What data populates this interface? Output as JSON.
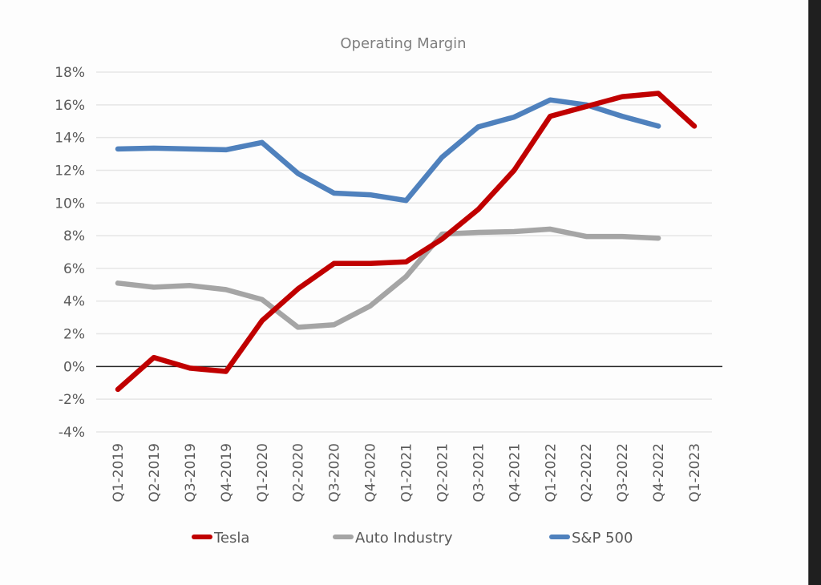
{
  "chart_data": {
    "type": "line",
    "title": "Operating Margin",
    "xlabel": "",
    "ylabel": "",
    "ylim": [
      -4,
      18
    ],
    "y_tick_step": 2,
    "y_tick_labels": [
      "18%",
      "16%",
      "14%",
      "12%",
      "10%",
      "8%",
      "6%",
      "4%",
      "2%",
      "0%",
      "-2%",
      "-4%"
    ],
    "y_unit": "%",
    "grid": true,
    "legend_position": "bottom",
    "categories": [
      "Q1-2019",
      "Q2-2019",
      "Q3-2019",
      "Q4-2019",
      "Q1-2020",
      "Q2-2020",
      "Q3-2020",
      "Q4-2020",
      "Q1-2021",
      "Q2-2021",
      "Q3-2021",
      "Q4-2021",
      "Q1-2022",
      "Q2-2022",
      "Q3-2022",
      "Q4-2022",
      "Q1-2023"
    ],
    "series": [
      {
        "name": "Tesla",
        "color": "#c00000",
        "values": [
          -1.4,
          0.55,
          -0.1,
          -0.3,
          2.8,
          4.75,
          6.3,
          6.3,
          6.4,
          7.8,
          9.6,
          12.0,
          15.3,
          15.9,
          16.5,
          16.7,
          14.7
        ]
      },
      {
        "name": "Auto Industry",
        "color": "#a5a5a5",
        "values": [
          5.1,
          4.85,
          4.95,
          4.7,
          4.1,
          2.4,
          2.55,
          3.7,
          5.5,
          8.1,
          8.2,
          8.25,
          8.4,
          7.95,
          7.95,
          7.85,
          null
        ]
      },
      {
        "name": "S&P 500",
        "color": "#4f81bd",
        "values": [
          13.3,
          13.35,
          13.3,
          13.25,
          13.7,
          11.8,
          10.6,
          10.5,
          10.15,
          12.8,
          14.65,
          15.25,
          16.3,
          16.0,
          15.3,
          14.7,
          null
        ]
      }
    ]
  }
}
